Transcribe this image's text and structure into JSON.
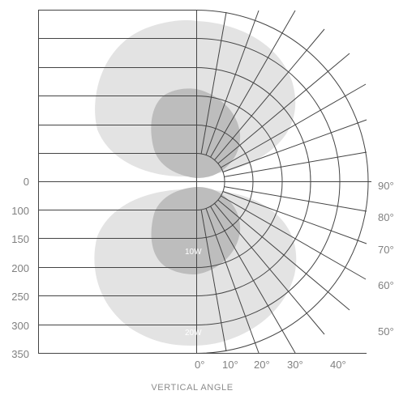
{
  "chart_data": {
    "type": "polar-diagram",
    "xlabel": "VERTICAL ANGLE",
    "left_scale_labels": [
      "0",
      "100",
      "150",
      "200",
      "250",
      "300",
      "350"
    ],
    "right_angle_labels": [
      "90°",
      "80°",
      "70°",
      "60°",
      "50°"
    ],
    "bottom_angle_labels": [
      "0°",
      "10°",
      "20°",
      "30°",
      "40°"
    ],
    "series": [
      {
        "name": "10W",
        "color": "#bdbdbd"
      },
      {
        "name": "20W",
        "color": "#e3e3e3"
      }
    ],
    "grid": true
  },
  "colors": {
    "line": "#444444",
    "light_lobe": "#e3e3e3",
    "dark_lobe": "#bdbdbd",
    "text": "#808080"
  }
}
